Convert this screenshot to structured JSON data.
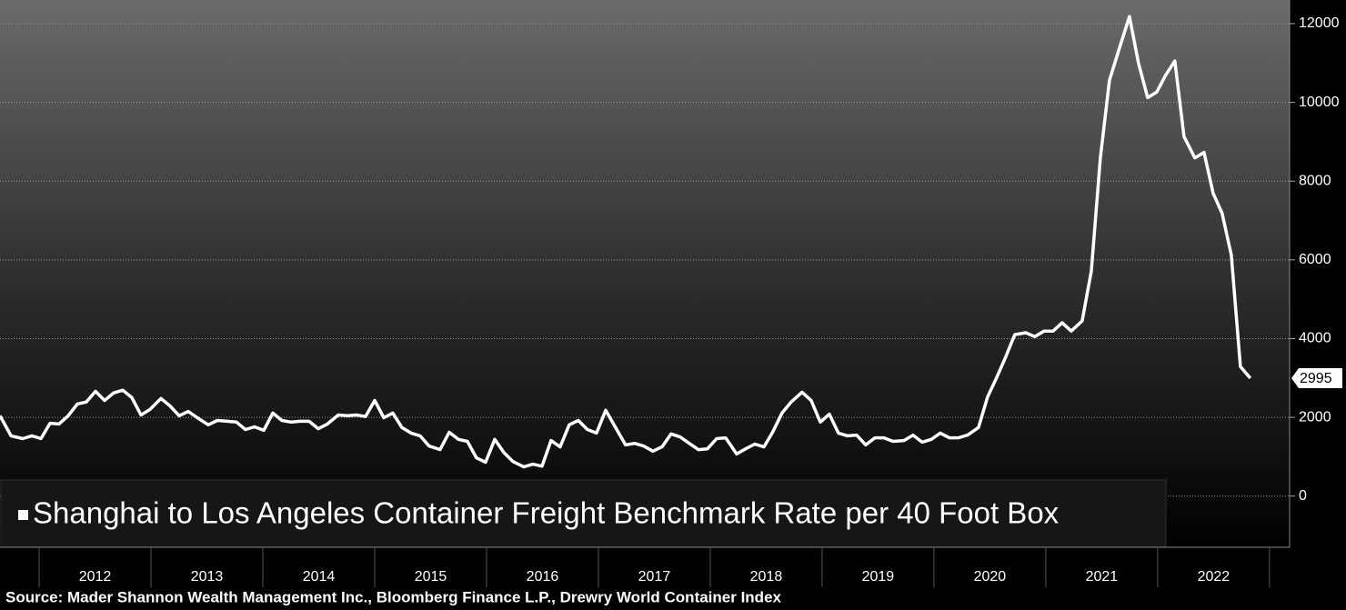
{
  "chart_data": {
    "type": "line",
    "source": "Source: Mader Shannon Wealth Management Inc., Bloomberg Finance L.P., Drewry World Container Index",
    "x": [
      2011.65,
      2011.748,
      2011.853,
      2011.935,
      2012.016,
      2012.097,
      2012.178,
      2012.26,
      2012.341,
      2012.422,
      2012.504,
      2012.585,
      2012.666,
      2012.748,
      2012.829,
      2012.91,
      2012.991,
      2013.089,
      2013.17,
      2013.252,
      2013.333,
      2013.414,
      2013.512,
      2013.593,
      2013.683,
      2013.764,
      2013.845,
      2013.926,
      2014.008,
      2014.089,
      2014.17,
      2014.252,
      2014.333,
      2014.414,
      2014.496,
      2014.577,
      2014.674,
      2014.756,
      2014.837,
      2014.918,
      2015.0,
      2015.081,
      2015.162,
      2015.243,
      2015.325,
      2015.406,
      2015.487,
      2015.585,
      2015.666,
      2015.748,
      2015.829,
      2015.91,
      2015.991,
      2016.073,
      2016.154,
      2016.235,
      2016.333,
      2016.414,
      2016.496,
      2016.577,
      2016.658,
      2016.739,
      2016.821,
      2016.902,
      2016.983,
      2017.065,
      2017.146,
      2017.243,
      2017.325,
      2017.406,
      2017.487,
      2017.569,
      2017.65,
      2017.731,
      2017.813,
      2017.894,
      2017.975,
      2018.057,
      2018.138,
      2018.236,
      2018.317,
      2018.398,
      2018.48,
      2018.561,
      2018.642,
      2018.723,
      2018.821,
      2018.902,
      2018.984,
      2019.065,
      2019.146,
      2019.228,
      2019.309,
      2019.39,
      2019.472,
      2019.553,
      2019.634,
      2019.732,
      2019.813,
      2019.894,
      2019.976,
      2020.057,
      2020.138,
      2020.22,
      2020.301,
      2020.398,
      2020.48,
      2020.561,
      2020.642,
      2020.723,
      2020.821,
      2020.902,
      2020.984,
      2021.065,
      2021.146,
      2021.228,
      2021.325,
      2021.407,
      2021.488,
      2021.569,
      2021.65,
      2021.748,
      2021.829,
      2021.911,
      2021.992,
      2022.073,
      2022.154,
      2022.236,
      2022.333,
      2022.415,
      2022.496,
      2022.577,
      2022.659,
      2022.74,
      2022.829
    ],
    "series": [
      {
        "name": "Shanghai to Los Angeles Container Freight Benchmark Rate per 40 Foot Box",
        "color": "#ffffff",
        "values": [
          2040,
          1530,
          1460,
          1530,
          1460,
          1850,
          1830,
          2040,
          2340,
          2390,
          2660,
          2430,
          2620,
          2690,
          2500,
          2060,
          2200,
          2480,
          2290,
          2040,
          2150,
          1990,
          1810,
          1920,
          1900,
          1880,
          1690,
          1760,
          1670,
          2110,
          1920,
          1880,
          1900,
          1900,
          1710,
          1830,
          2060,
          2040,
          2060,
          2020,
          2430,
          1990,
          2110,
          1740,
          1600,
          1530,
          1270,
          1180,
          1620,
          1440,
          1390,
          970,
          860,
          1440,
          1110,
          880,
          740,
          810,
          760,
          1410,
          1250,
          1810,
          1920,
          1690,
          1600,
          2180,
          1780,
          1300,
          1340,
          1270,
          1140,
          1250,
          1580,
          1500,
          1340,
          1180,
          1200,
          1460,
          1480,
          1070,
          1200,
          1320,
          1250,
          1640,
          2110,
          2390,
          2640,
          2430,
          1880,
          2080,
          1600,
          1530,
          1550,
          1300,
          1480,
          1480,
          1390,
          1410,
          1550,
          1370,
          1440,
          1600,
          1480,
          1480,
          1550,
          1740,
          2520,
          3010,
          3540,
          4100,
          4150,
          4050,
          4190,
          4190,
          4400,
          4190,
          4450,
          5720,
          8590,
          10560,
          11300,
          12180,
          11000,
          10120,
          10260,
          10700,
          11050,
          9130,
          8590,
          8730,
          7690,
          7180,
          6120,
          3290,
          2995
        ]
      }
    ],
    "xlim": [
      2011.65,
      2023.18
    ],
    "xticks": [
      {
        "value": 2012.5,
        "label": "2012"
      },
      {
        "value": 2013.5,
        "label": "2013"
      },
      {
        "value": 2014.5,
        "label": "2014"
      },
      {
        "value": 2015.5,
        "label": "2015"
      },
      {
        "value": 2016.5,
        "label": "2016"
      },
      {
        "value": 2017.5,
        "label": "2017"
      },
      {
        "value": 2018.5,
        "label": "2018"
      },
      {
        "value": 2019.5,
        "label": "2019"
      },
      {
        "value": 2020.5,
        "label": "2020"
      },
      {
        "value": 2021.5,
        "label": "2021"
      },
      {
        "value": 2022.5,
        "label": "2022"
      }
    ],
    "ylim": [
      -1300,
      12600
    ],
    "yticks": [
      0,
      2000,
      4000,
      6000,
      8000,
      10000,
      12000
    ],
    "grid": true
  }
}
